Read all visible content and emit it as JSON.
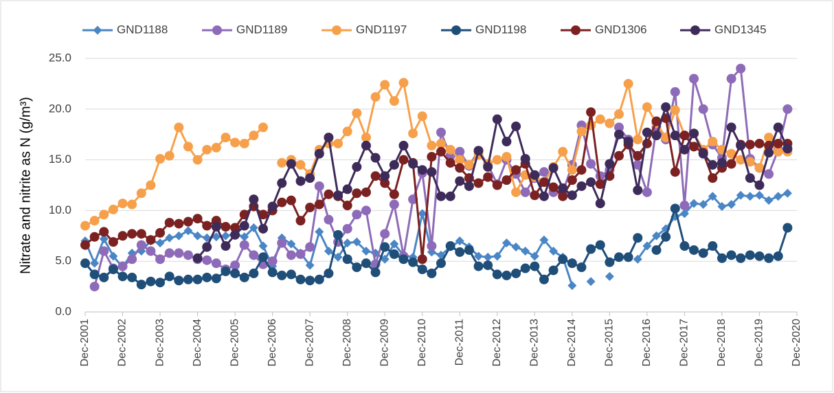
{
  "chart_data": {
    "type": "line",
    "y_label": "Nitrate and nitrite as N (g/m³)",
    "x": [
      "2001-12",
      "2002-03",
      "2002-06",
      "2002-09",
      "2002-12",
      "2003-03",
      "2003-06",
      "2003-09",
      "2003-12",
      "2004-03",
      "2004-06",
      "2004-09",
      "2004-12",
      "2005-03",
      "2005-06",
      "2005-09",
      "2005-12",
      "2006-03",
      "2006-06",
      "2006-09",
      "2006-12",
      "2007-03",
      "2007-06",
      "2007-09",
      "2007-12",
      "2008-03",
      "2008-06",
      "2008-09",
      "2008-12",
      "2009-03",
      "2009-06",
      "2009-09",
      "2009-12",
      "2010-03",
      "2010-06",
      "2010-09",
      "2010-12",
      "2011-03",
      "2011-06",
      "2011-09",
      "2011-12",
      "2012-03",
      "2012-06",
      "2012-09",
      "2012-12",
      "2013-03",
      "2013-06",
      "2013-09",
      "2013-12",
      "2014-03",
      "2014-06",
      "2014-09",
      "2014-12",
      "2015-03",
      "2015-06",
      "2015-09",
      "2015-12",
      "2016-03",
      "2016-06",
      "2016-09",
      "2016-12",
      "2017-03",
      "2017-06",
      "2017-09",
      "2017-12",
      "2018-03",
      "2018-06",
      "2018-09",
      "2018-12",
      "2019-03",
      "2019-06",
      "2019-09",
      "2019-12",
      "2020-03",
      "2020-06",
      "2020-09"
    ],
    "xlim": [
      "2001-12",
      "2020-12"
    ],
    "xticks": [
      {
        "value": "2001-12",
        "label": "Dec-2001"
      },
      {
        "value": "2002-12",
        "label": "Dec-2002"
      },
      {
        "value": "2003-12",
        "label": "Dec-2003"
      },
      {
        "value": "2004-12",
        "label": "Dec-2004"
      },
      {
        "value": "2005-12",
        "label": "Dec-2005"
      },
      {
        "value": "2006-12",
        "label": "Dec-2006"
      },
      {
        "value": "2007-12",
        "label": "Dec-2007"
      },
      {
        "value": "2008-12",
        "label": "Dec-2008"
      },
      {
        "value": "2009-12",
        "label": "Dec-2009"
      },
      {
        "value": "2010-12",
        "label": "Dec-2010"
      },
      {
        "value": "2011-12",
        "label": "Dec-2011"
      },
      {
        "value": "2012-12",
        "label": "Dec-2012"
      },
      {
        "value": "2013-12",
        "label": "Dec-2013"
      },
      {
        "value": "2014-12",
        "label": "Dec-2014"
      },
      {
        "value": "2015-12",
        "label": "Dec-2015"
      },
      {
        "value": "2016-12",
        "label": "Dec-2016"
      },
      {
        "value": "2017-12",
        "label": "Dec-2017"
      },
      {
        "value": "2018-12",
        "label": "Dec-2018"
      },
      {
        "value": "2019-12",
        "label": "Dec-2019"
      },
      {
        "value": "2020-12",
        "label": "Dec-2020"
      }
    ],
    "ylim": [
      0,
      25
    ],
    "yticks": [
      {
        "value": 0,
        "label": "0.0"
      },
      {
        "value": 5,
        "label": "5.0"
      },
      {
        "value": 10,
        "label": "10.0"
      },
      {
        "value": 15,
        "label": "15.0"
      },
      {
        "value": 20,
        "label": "20.0"
      },
      {
        "value": 25,
        "label": "25.0"
      }
    ],
    "grid": true,
    "legend": "top",
    "series": [
      {
        "name": "GND1188",
        "color": "#4a86c5",
        "marker": "diamond",
        "values": [
          7.0,
          4.8,
          7.2,
          5.5,
          4.4,
          5.8,
          6.0,
          7.0,
          6.8,
          7.3,
          7.5,
          8.0,
          7.5,
          7.3,
          7.4,
          7.5,
          7.7,
          7.4,
          8.3,
          6.5,
          4.5,
          7.3,
          6.7,
          5.8,
          4.6,
          7.9,
          6.0,
          5.4,
          6.8,
          6.9,
          6.0,
          5.8,
          5.2,
          6.7,
          5.6,
          5.4,
          9.7,
          5.9,
          5.6,
          6.4,
          7.0,
          6.4,
          5.5,
          5.4,
          5.5,
          6.8,
          6.4,
          6.0,
          5.5,
          7.1,
          6.0,
          5.4,
          2.6,
          null,
          3.0,
          null,
          3.5,
          null,
          null,
          5.2,
          6.5,
          7.5,
          8.2,
          9.4,
          9.7,
          10.7,
          10.6,
          11.4,
          10.4,
          10.6,
          11.5,
          11.4,
          11.5,
          11.0,
          11.4,
          11.7
        ]
      },
      {
        "name": "GND1189",
        "color": "#8e6bb8",
        "marker": "circle",
        "values": [
          null,
          2.5,
          6.0,
          4.3,
          4.5,
          5.2,
          6.6,
          6.0,
          5.2,
          5.8,
          5.8,
          5.6,
          5.2,
          5.1,
          4.8,
          4.2,
          4.6,
          6.6,
          5.6,
          4.7,
          5.0,
          6.8,
          5.6,
          5.7,
          6.4,
          12.4,
          9.1,
          6.9,
          8.2,
          9.6,
          10.0,
          4.7,
          7.7,
          10.6,
          5.5,
          11.1,
          13.7,
          6.5,
          17.7,
          15.4,
          15.8,
          14.4,
          15.9,
          14.5,
          12.6,
          15.0,
          13.6,
          11.8,
          13.2,
          13.8,
          11.8,
          11.8,
          14.5,
          18.4,
          14.6,
          13.4,
          14.0,
          18.2,
          17.0,
          14.5,
          11.8,
          18.2,
          17.0,
          21.7,
          10.5,
          23.0,
          20.0,
          16.5,
          15.2,
          23.0,
          24.0,
          15.1,
          14.2,
          13.6,
          16.0,
          20.0
        ]
      },
      {
        "name": "GND1197",
        "color": "#f7a04b",
        "marker": "circle",
        "values": [
          8.5,
          9.0,
          9.6,
          10.1,
          10.7,
          10.6,
          11.7,
          12.5,
          15.1,
          15.4,
          18.2,
          16.3,
          15.0,
          16.0,
          16.2,
          17.2,
          16.7,
          16.6,
          17.4,
          18.2,
          null,
          14.7,
          15.0,
          14.5,
          13.6,
          16.0,
          16.6,
          16.6,
          17.8,
          19.6,
          17.2,
          21.2,
          22.4,
          20.8,
          22.6,
          17.6,
          19.3,
          16.4,
          16.6,
          16.0,
          15.0,
          14.5,
          15.5,
          14.6,
          15.0,
          15.3,
          11.8,
          13.5,
          13.3,
          12.8,
          14.3,
          15.8,
          14.0,
          17.8,
          18.4,
          19.0,
          18.6,
          19.5,
          22.5,
          17.0,
          20.2,
          18.6,
          17.2,
          19.9,
          17.4,
          17.6,
          16.0,
          16.8,
          16.0,
          15.6,
          15.0,
          14.8,
          14.2,
          17.2,
          15.8,
          15.8
        ]
      },
      {
        "name": "GND1198",
        "color": "#1f4e79",
        "marker": "circle",
        "values": [
          4.8,
          3.7,
          3.4,
          4.2,
          3.5,
          3.4,
          2.7,
          3.0,
          2.9,
          3.5,
          3.1,
          3.2,
          3.2,
          3.4,
          3.3,
          4.0,
          3.8,
          3.4,
          3.8,
          5.4,
          3.9,
          3.6,
          3.7,
          3.2,
          3.1,
          3.2,
          3.8,
          7.6,
          5.2,
          4.4,
          4.8,
          3.9,
          6.4,
          5.7,
          5.2,
          4.9,
          4.2,
          3.8,
          4.8,
          6.5,
          5.9,
          6.1,
          4.5,
          4.6,
          3.7,
          3.6,
          3.8,
          4.3,
          4.5,
          3.2,
          4.1,
          5.2,
          4.8,
          4.4,
          6.2,
          6.6,
          4.9,
          5.4,
          5.4,
          7.3,
          null,
          6.1,
          7.4,
          10.2,
          6.5,
          6.1,
          5.8,
          6.5,
          5.3,
          5.6,
          5.3,
          5.6,
          5.5,
          5.3,
          5.5,
          8.3
        ]
      },
      {
        "name": "GND1306",
        "color": "#7b2121",
        "marker": "circle",
        "values": [
          6.6,
          7.4,
          7.9,
          6.9,
          7.5,
          7.7,
          7.7,
          7.1,
          7.8,
          8.8,
          8.7,
          8.9,
          9.2,
          8.5,
          9.0,
          8.4,
          8.3,
          9.6,
          10.4,
          9.6,
          10.0,
          10.8,
          11.0,
          9.0,
          10.3,
          10.6,
          11.6,
          11.4,
          10.5,
          11.7,
          11.8,
          13.4,
          12.7,
          11.6,
          15.0,
          14.7,
          5.2,
          15.3,
          15.8,
          14.7,
          14.2,
          13.2,
          12.7,
          13.3,
          12.5,
          13.0,
          14.0,
          14.6,
          11.5,
          12.8,
          12.3,
          11.4,
          13.0,
          14.0,
          19.7,
          12.6,
          13.4,
          15.4,
          16.5,
          15.4,
          16.6,
          18.8,
          19.1,
          13.8,
          17.4,
          16.3,
          15.7,
          13.2,
          14.2,
          14.6,
          16.5,
          16.5,
          16.6,
          16.4,
          16.6,
          16.6
        ]
      },
      {
        "name": "GND1345",
        "color": "#3d2b5a",
        "marker": "circle",
        "values": [
          null,
          null,
          null,
          null,
          null,
          null,
          null,
          null,
          null,
          null,
          null,
          null,
          5.3,
          6.4,
          8.4,
          6.5,
          7.6,
          8.5,
          11.1,
          8.2,
          10.4,
          12.7,
          14.6,
          12.9,
          13.2,
          15.6,
          17.2,
          11.5,
          12.1,
          14.3,
          16.4,
          15.2,
          13.4,
          14.5,
          16.4,
          14.6,
          14.0,
          13.8,
          11.4,
          11.4,
          12.9,
          12.4,
          15.9,
          14.3,
          19.0,
          16.8,
          18.3,
          15.1,
          13.5,
          11.4,
          14.2,
          12.2,
          11.5,
          12.4,
          12.8,
          10.7,
          14.6,
          17.5,
          16.8,
          12.0,
          17.7,
          17.4,
          20.2,
          17.4,
          16.0,
          17.6,
          15.6,
          14.5,
          14.7,
          18.2,
          16.4,
          13.2,
          12.5,
          15.7,
          18.2,
          16.1
        ]
      }
    ]
  }
}
